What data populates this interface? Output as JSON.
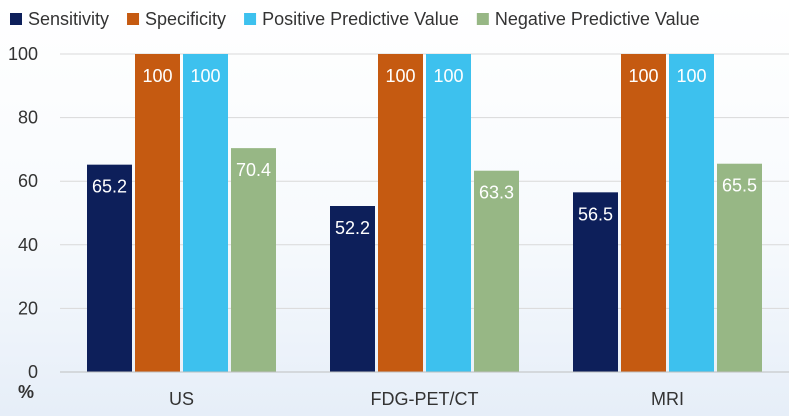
{
  "chart_data": {
    "type": "bar",
    "categories": [
      "US",
      "FDG-PET/CT",
      "MRI"
    ],
    "series": [
      {
        "name": "Sensitivity",
        "color": "#0d1f5a",
        "values": [
          65.2,
          52.2,
          56.5
        ]
      },
      {
        "name": "Specificity",
        "color": "#c55a11",
        "values": [
          100,
          100,
          100
        ]
      },
      {
        "name": "Positive Predictive Value",
        "color": "#3dc1ee",
        "values": [
          100,
          100,
          100
        ]
      },
      {
        "name": "Negative Predictive Value",
        "color": "#97b785",
        "values": [
          70.4,
          63.3,
          65.5
        ]
      }
    ],
    "ylim": [
      0,
      100
    ],
    "yticks": [
      0,
      20,
      40,
      60,
      80,
      100
    ],
    "ylabel": "%",
    "grid": true,
    "legend": "top"
  }
}
